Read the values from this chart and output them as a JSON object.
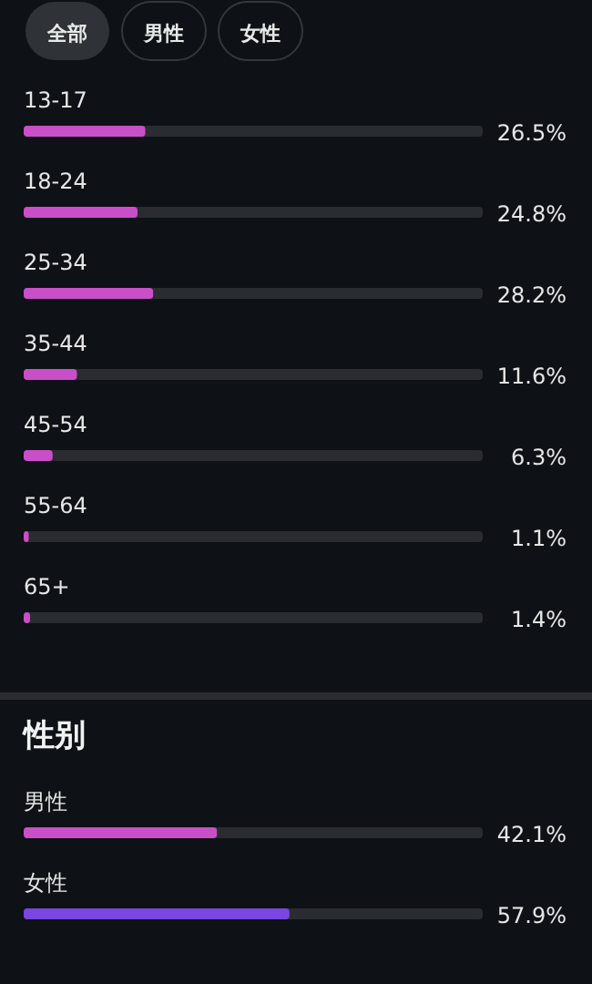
{
  "chart_data": [
    {
      "type": "bar",
      "orientation": "horizontal",
      "categories": [
        "13-17",
        "18-24",
        "25-34",
        "35-44",
        "45-54",
        "55-64",
        "65+"
      ],
      "values": [
        26.5,
        24.8,
        28.2,
        11.6,
        6.3,
        1.1,
        1.4
      ],
      "value_labels": [
        "26.5%",
        "24.8%",
        "28.2%",
        "11.6%",
        "6.3%",
        "1.1%",
        "1.4%"
      ],
      "color": "#c94fc8",
      "xlim": [
        0,
        100
      ],
      "annotations": [
        "全部",
        "男性",
        "女性"
      ]
    },
    {
      "type": "bar",
      "orientation": "horizontal",
      "title": "性别",
      "categories": [
        "男性",
        "女性"
      ],
      "values": [
        42.1,
        57.9
      ],
      "value_labels": [
        "42.1%",
        "57.9%"
      ],
      "colors": [
        "#c94fc8",
        "#7a45e0"
      ],
      "xlim": [
        0,
        100
      ]
    }
  ]
}
